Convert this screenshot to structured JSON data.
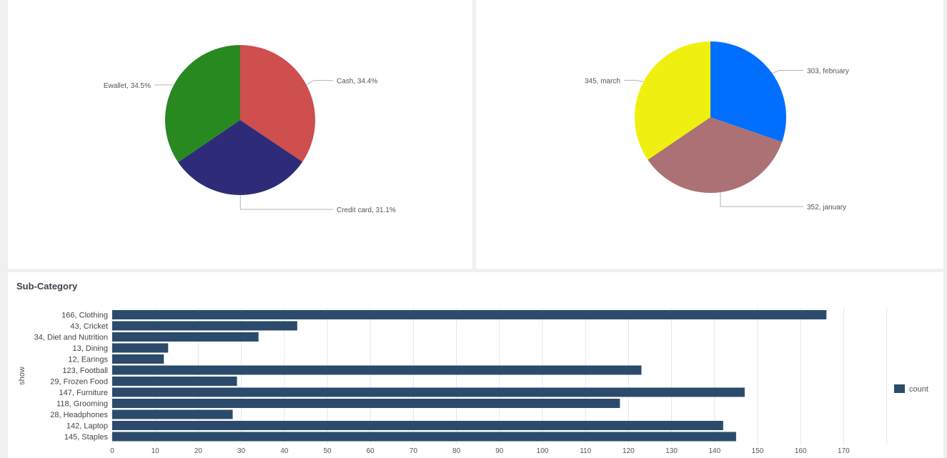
{
  "panels": {
    "bottom_title": "Sub-Category"
  },
  "chart_data": [
    {
      "type": "pie",
      "slices": [
        {
          "label": "Cash",
          "value": 34.4,
          "display": "Cash, 34.4%",
          "color": "#cf4e4e"
        },
        {
          "label": "Credit card",
          "value": 31.1,
          "display": "Credit card, 31.1%",
          "color": "#2e2b78"
        },
        {
          "label": "Ewallet",
          "value": 34.5,
          "display": "Ewallet, 34.5%",
          "color": "#278920"
        }
      ]
    },
    {
      "type": "pie",
      "slices": [
        {
          "label": "february",
          "value": 303,
          "display": "303, february",
          "color": "#006eff"
        },
        {
          "label": "january",
          "value": 352,
          "display": "352, january",
          "color": "#ac7174"
        },
        {
          "label": "march",
          "value": 345,
          "display": "345, march",
          "color": "#f0f010"
        }
      ]
    },
    {
      "type": "bar",
      "orientation": "horizontal",
      "title": "Sub-Category",
      "ylabel": "show",
      "categories": [
        "166, Clothing",
        "43, Cricket",
        "34, Diet and Nutrition",
        "13, Dining",
        "12, Earings",
        "123, Football",
        "29, Frozen Food",
        "147, Furniture",
        "118, Grooming",
        "28, Headphones",
        "142, Laptop",
        "145, Staples"
      ],
      "series": [
        {
          "name": "count",
          "values": [
            166,
            43,
            34,
            13,
            12,
            123,
            29,
            147,
            118,
            28,
            142,
            145
          ],
          "color": "#2c4b6c"
        }
      ],
      "xlim": [
        0,
        180
      ],
      "xticks": [
        0,
        10,
        20,
        30,
        40,
        50,
        60,
        70,
        80,
        90,
        100,
        110,
        120,
        130,
        140,
        150,
        160,
        170
      ],
      "grid": true,
      "legend": "right"
    }
  ]
}
